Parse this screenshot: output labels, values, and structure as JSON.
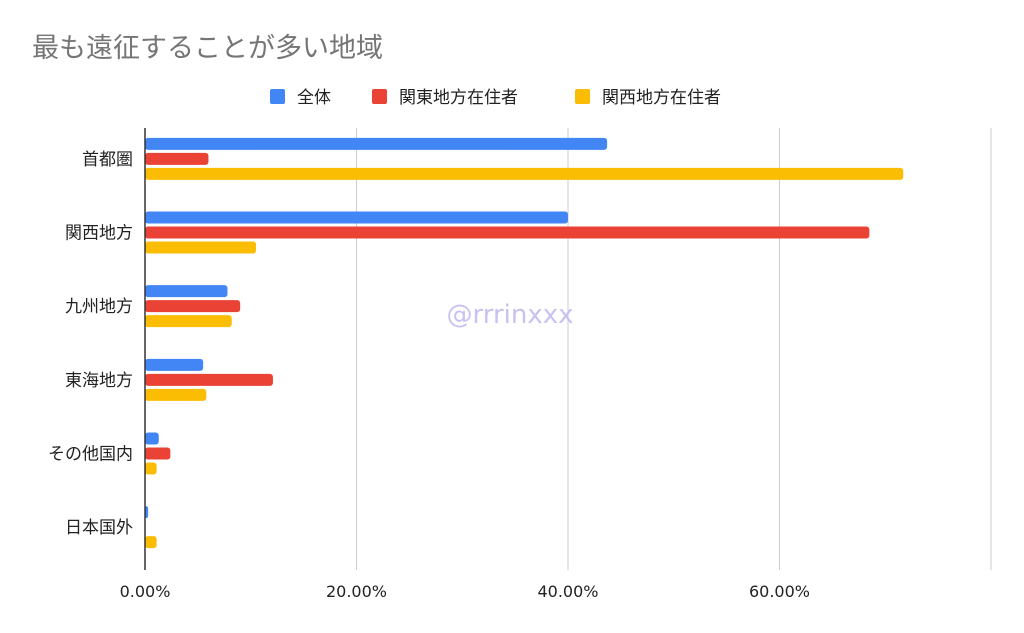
{
  "chart_data": {
    "type": "bar",
    "orientation": "horizontal",
    "title": "最も遠征することが多い地域",
    "categories": [
      "首都圏",
      "関西地方",
      "九州地方",
      "東海地方",
      "その他国内",
      "日本国外"
    ],
    "series": [
      {
        "name": "全体",
        "color": "#4285f4",
        "values": [
          43.7,
          40.0,
          7.8,
          5.5,
          1.3,
          0.3
        ]
      },
      {
        "name": "関東地方在住者",
        "color": "#ea4335",
        "values": [
          6.0,
          68.5,
          9.0,
          12.1,
          2.4,
          0
        ]
      },
      {
        "name": "関西地方在住者",
        "color": "#fbbc04",
        "values": [
          71.7,
          10.5,
          8.2,
          5.8,
          1.1,
          1.1
        ]
      }
    ],
    "xlim": [
      0,
      80
    ],
    "xticks": [
      0,
      20,
      40,
      60
    ],
    "xtick_labels": [
      "0.00%",
      "20.00%",
      "40.00%",
      "60.00%"
    ],
    "grid": true,
    "legend": "top-center",
    "watermark": "@rrrinxxx"
  }
}
